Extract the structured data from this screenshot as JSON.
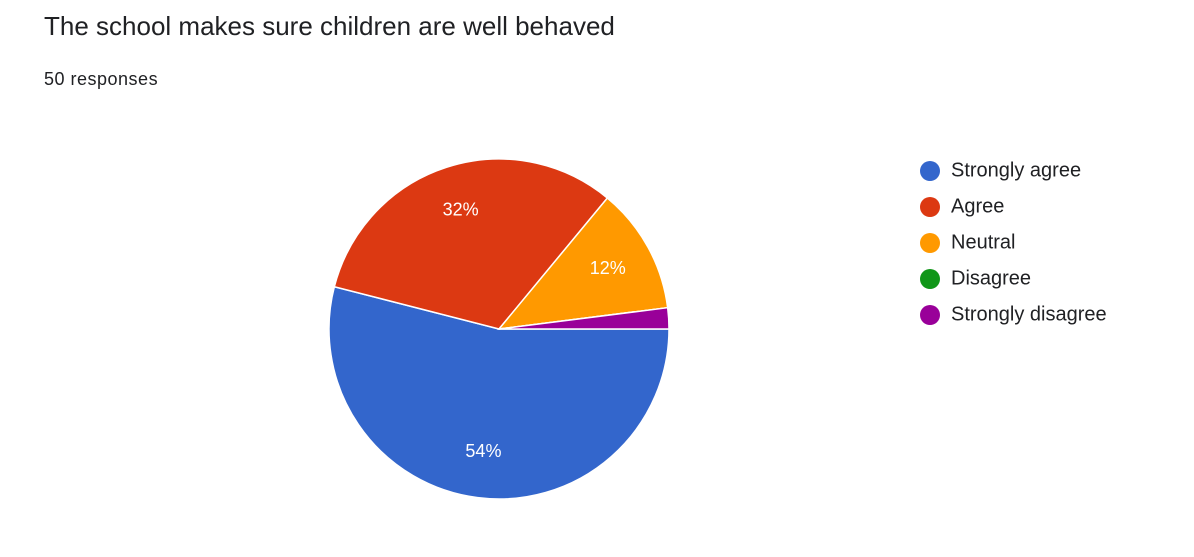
{
  "chart_data": {
    "type": "pie",
    "title": "The school makes sure children are well behaved",
    "subtitle": "50 responses",
    "categories": [
      "Strongly agree",
      "Agree",
      "Neutral",
      "Disagree",
      "Strongly disagree"
    ],
    "values": [
      54,
      32,
      12,
      0,
      2
    ],
    "value_labels": [
      "54%",
      "32%",
      "12%",
      null,
      null
    ],
    "colors": [
      "#3366cc",
      "#dc3912",
      "#ff9900",
      "#109618",
      "#990099"
    ],
    "legend": "right"
  }
}
